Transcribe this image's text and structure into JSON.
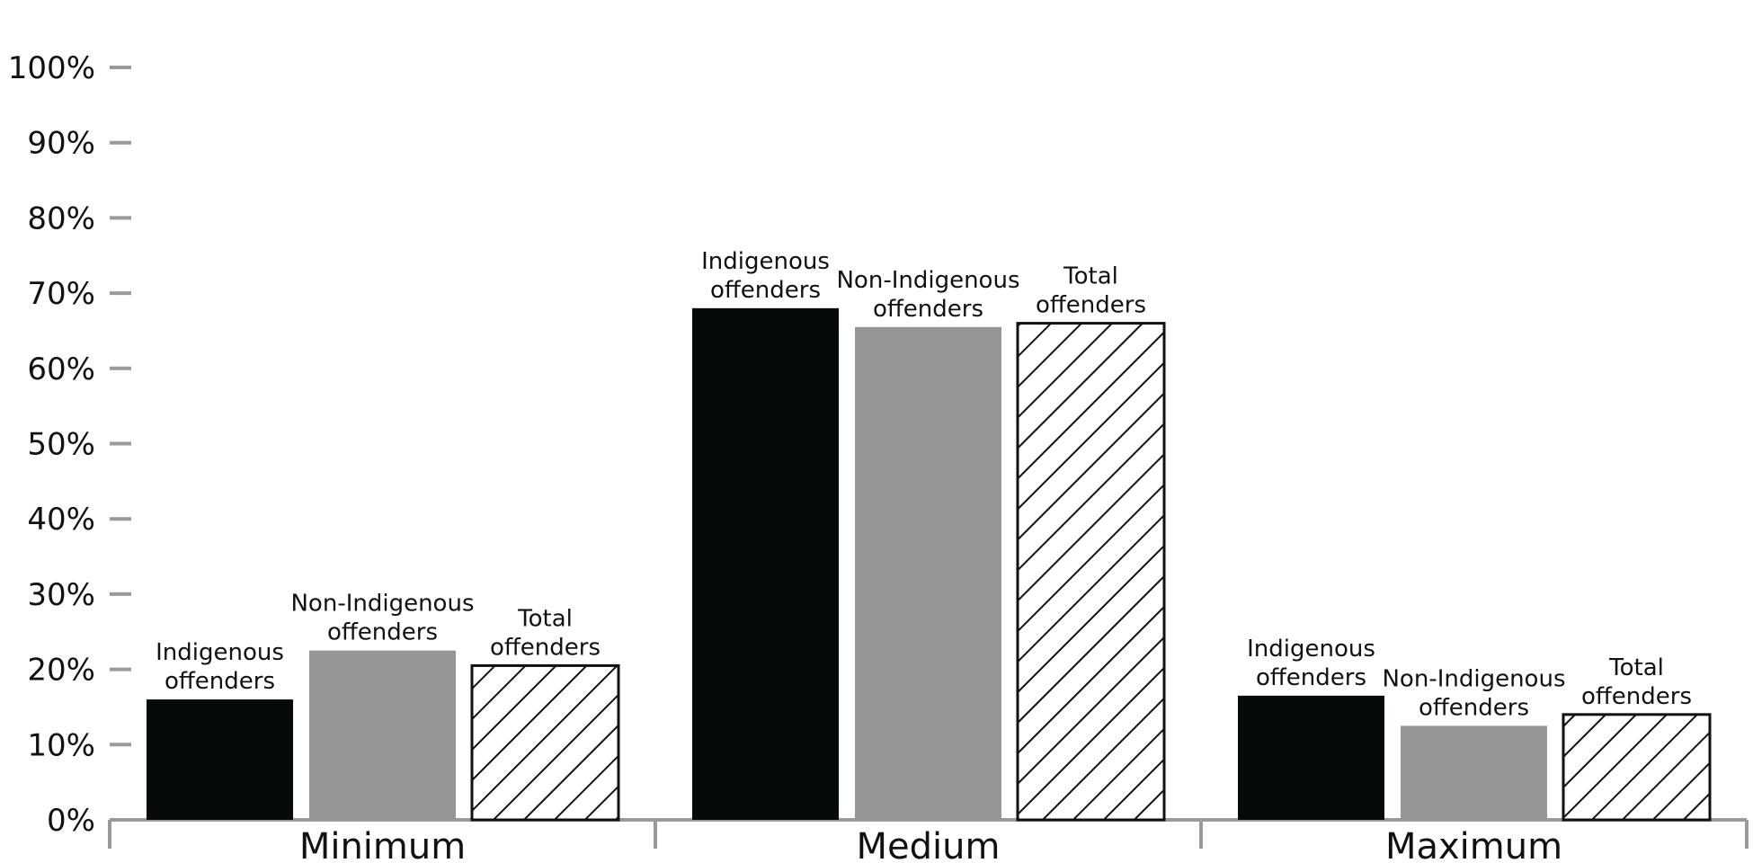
{
  "chart_data": {
    "type": "bar",
    "title": "",
    "xlabel": "",
    "ylabel": "",
    "ylim": [
      0,
      100
    ],
    "y_tick_labels": [
      "0%",
      "10%",
      "20%",
      "30%",
      "40%",
      "50%",
      "60%",
      "70%",
      "80%",
      "90%",
      "100%"
    ],
    "categories": [
      "Minimum",
      "Medium",
      "Maximum"
    ],
    "series": [
      {
        "name": "Indigenous offenders",
        "label_lines": [
          "Indigenous",
          "offenders"
        ],
        "values": [
          16,
          68,
          16.5
        ],
        "fill": "#070a0a",
        "pattern": "solid"
      },
      {
        "name": "Non-Indigenous offenders",
        "label_lines": [
          "Non-Indigenous",
          "offenders"
        ],
        "values": [
          22.5,
          65.5,
          12.5
        ],
        "fill": "#979697",
        "pattern": "solid"
      },
      {
        "name": "Total offenders",
        "label_lines": [
          "Total",
          "offenders"
        ],
        "values": [
          20.5,
          66,
          14
        ],
        "fill": "#ffffff",
        "pattern": "diagonal-hatch"
      }
    ],
    "grid": false,
    "legend": "none",
    "axis_color": "#9a9a9a"
  }
}
